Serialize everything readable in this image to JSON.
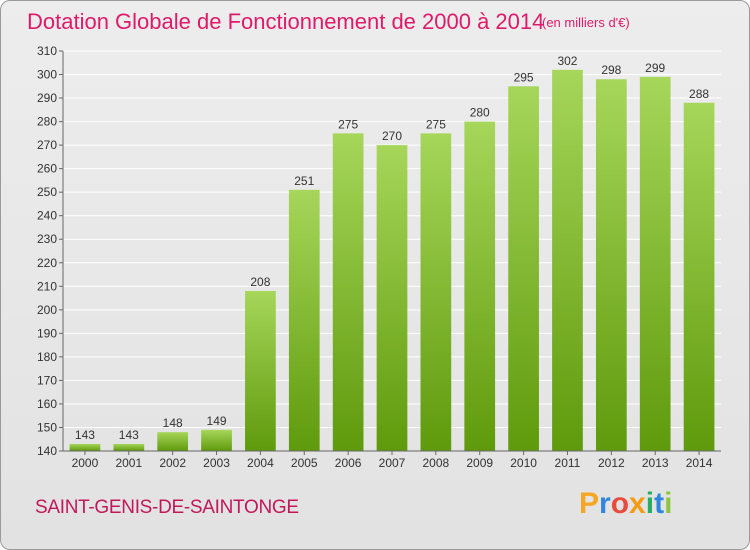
{
  "title": "Dotation Globale de Fonctionnement de 2000 à 2014",
  "unit": "(en milliers d'€)",
  "commune": "SAINT-GENIS-DE-SAINTONGE",
  "logo": {
    "letters": [
      "P",
      "r",
      "o",
      "x",
      "i",
      "t",
      "i"
    ],
    "colors": [
      "#f5a623",
      "#2e86de",
      "#e74c3c",
      "#f39c12",
      "#27ae60",
      "#2e86de",
      "#8dc63f"
    ]
  },
  "colors": {
    "bar_top": "#a6d65a",
    "bar_bottom": "#5f9a0c",
    "title": "#e01a6a",
    "grid": "#ffffff"
  },
  "chart_data": {
    "type": "bar",
    "title": "Dotation Globale de Fonctionnement de 2000 à 2014",
    "categories": [
      "2000",
      "2001",
      "2002",
      "2003",
      "2004",
      "2005",
      "2006",
      "2007",
      "2008",
      "2009",
      "2010",
      "2011",
      "2012",
      "2013",
      "2014"
    ],
    "values": [
      143,
      143,
      148,
      149,
      208,
      251,
      275,
      270,
      275,
      280,
      295,
      302,
      298,
      299,
      288
    ],
    "ylim": [
      140,
      310
    ],
    "yticks": [
      140,
      150,
      160,
      170,
      180,
      190,
      200,
      210,
      220,
      230,
      240,
      250,
      260,
      270,
      280,
      290,
      300,
      310
    ],
    "grid": true,
    "xlabel": "",
    "ylabel": ""
  }
}
